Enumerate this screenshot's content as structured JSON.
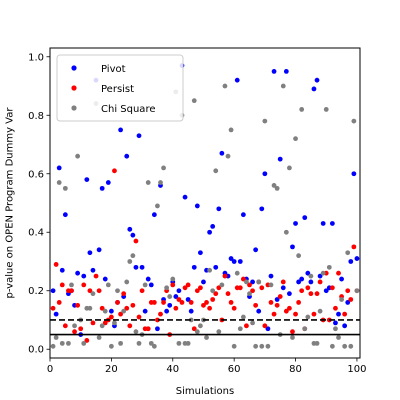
{
  "chart_data": {
    "type": "scatter",
    "xlabel": "Simulations",
    "ylabel": "p-value on OPEN Program Dummy Var",
    "xlim": [
      0,
      101
    ],
    "ylim": [
      -0.03,
      1.03
    ],
    "xticks": [
      0,
      20,
      40,
      60,
      80,
      100
    ],
    "yticks": [
      0.0,
      0.2,
      0.4,
      0.6,
      0.8,
      1.0
    ],
    "xtick_labels": [
      "0",
      "20",
      "40",
      "60",
      "80",
      "100"
    ],
    "ytick_labels": [
      "0.0",
      "0.2",
      "0.4",
      "0.6",
      "0.8",
      "1.0"
    ],
    "grid": false,
    "legend_position": "upper-left",
    "hlines": [
      {
        "y": 0.1,
        "style": "dashed",
        "color": "#000000"
      },
      {
        "y": 0.05,
        "style": "solid",
        "color": "#000000"
      }
    ],
    "series": [
      {
        "name": "Pivot",
        "color": "#0000ff",
        "x": [
          1,
          2,
          3,
          4,
          5,
          6,
          7,
          8,
          9,
          10,
          11,
          12,
          13,
          14,
          15,
          16,
          17,
          18,
          19,
          20,
          21,
          22,
          23,
          24,
          25,
          26,
          27,
          28,
          29,
          30,
          31,
          32,
          33,
          34,
          35,
          36,
          37,
          38,
          39,
          40,
          41,
          42,
          43,
          44,
          45,
          46,
          47,
          48,
          49,
          50,
          51,
          52,
          53,
          54,
          55,
          56,
          57,
          58,
          59,
          60,
          61,
          62,
          63,
          64,
          65,
          66,
          67,
          68,
          69,
          70,
          71,
          72,
          73,
          74,
          75,
          76,
          77,
          78,
          79,
          80,
          81,
          82,
          83,
          84,
          85,
          86,
          87,
          88,
          89,
          90,
          91,
          92,
          93,
          94,
          95,
          96,
          97,
          98,
          99,
          100
        ],
        "y": [
          0.2,
          0.12,
          0.62,
          0.27,
          0.46,
          0.19,
          0.2,
          0.15,
          0.26,
          0.05,
          0.25,
          0.58,
          0.33,
          0.27,
          0.92,
          0.34,
          0.55,
          0.24,
          0.57,
          0.13,
          0.08,
          0.16,
          0.75,
          0.18,
          0.66,
          0.41,
          0.39,
          0.28,
          0.73,
          0.28,
          0.13,
          0.24,
          0.22,
          0.46,
          0.07,
          0.56,
          0.17,
          0.13,
          0.15,
          0.23,
          0.18,
          0.2,
          0.97,
          0.52,
          0.17,
          0.13,
          0.28,
          0.49,
          0.33,
          0.23,
          0.27,
          0.4,
          0.42,
          0.28,
          0.48,
          0.67,
          0.26,
          0.25,
          0.31,
          0.3,
          0.92,
          0.3,
          0.46,
          0.24,
          0.18,
          0.23,
          0.34,
          0.13,
          0.48,
          0.6,
          0.07,
          0.25,
          0.95,
          0.17,
          0.65,
          0.21,
          0.95,
          0.19,
          0.35,
          0.43,
          0.23,
          0.24,
          0.45,
          0.26,
          0.23,
          0.89,
          0.92,
          0.25,
          0.43,
          0.2,
          0.21,
          0.43,
          0.09,
          0.12,
          0.24,
          0.08,
          0.16,
          0.3,
          0.6,
          0.31
        ]
      },
      {
        "name": "Persist",
        "color": "#ff0000",
        "x": [
          1,
          2,
          3,
          4,
          5,
          6,
          7,
          8,
          9,
          10,
          11,
          12,
          13,
          14,
          15,
          16,
          17,
          18,
          19,
          20,
          21,
          22,
          23,
          24,
          25,
          26,
          27,
          28,
          29,
          30,
          31,
          32,
          33,
          34,
          35,
          36,
          37,
          38,
          39,
          40,
          41,
          42,
          43,
          44,
          45,
          46,
          47,
          48,
          49,
          50,
          51,
          52,
          53,
          54,
          55,
          56,
          57,
          58,
          59,
          60,
          61,
          62,
          63,
          64,
          65,
          66,
          67,
          68,
          69,
          70,
          71,
          72,
          73,
          74,
          75,
          76,
          77,
          78,
          79,
          80,
          81,
          82,
          83,
          84,
          85,
          86,
          87,
          88,
          89,
          90,
          91,
          92,
          93,
          94,
          95,
          96,
          97,
          98,
          99,
          100
        ],
        "y": [
          0.14,
          0.29,
          0.16,
          0.22,
          0.08,
          0.2,
          0.2,
          0.06,
          0.15,
          0.07,
          0.22,
          0.03,
          0.2,
          0.09,
          0.25,
          0.2,
          0.14,
          0.09,
          0.1,
          0.11,
          0.61,
          0.16,
          0.12,
          0.19,
          0.14,
          0.08,
          0.15,
          0.37,
          0.11,
          0.2,
          0.07,
          0.07,
          0.16,
          0.16,
          0.1,
          0.12,
          0.16,
          0.2,
          0.05,
          0.22,
          0.14,
          0.17,
          0.16,
          0.21,
          0.22,
          0.16,
          0.07,
          0.2,
          0.21,
          0.15,
          0.16,
          0.14,
          0.17,
          0.19,
          0.21,
          0.1,
          0.25,
          0.19,
          0.16,
          0.14,
          0.21,
          0.21,
          0.24,
          0.08,
          0.22,
          0.2,
          0.15,
          0.23,
          0.21,
          0.08,
          0.22,
          0.16,
          0.12,
          0.15,
          0.18,
          0.23,
          0.13,
          0.14,
          0.06,
          0.12,
          0.16,
          0.2,
          0.07,
          0.21,
          0.19,
          0.12,
          0.19,
          0.23,
          0.1,
          0.26,
          0.1,
          0.21,
          0.14,
          0.26,
          0.18,
          0.12,
          0.2,
          0.17,
          0.35,
          0.2
        ]
      },
      {
        "name": "Chi Square",
        "color": "#808080",
        "x": [
          1,
          2,
          3,
          4,
          5,
          6,
          7,
          8,
          9,
          10,
          11,
          12,
          13,
          14,
          15,
          16,
          17,
          18,
          19,
          20,
          21,
          22,
          23,
          24,
          25,
          26,
          27,
          28,
          29,
          30,
          31,
          32,
          33,
          34,
          35,
          36,
          37,
          38,
          39,
          40,
          41,
          42,
          43,
          44,
          45,
          46,
          47,
          48,
          49,
          50,
          51,
          52,
          53,
          54,
          55,
          56,
          57,
          58,
          59,
          60,
          61,
          62,
          63,
          64,
          65,
          66,
          67,
          68,
          69,
          70,
          71,
          72,
          73,
          74,
          75,
          76,
          77,
          78,
          79,
          80,
          81,
          82,
          83,
          84,
          85,
          86,
          87,
          88,
          89,
          90,
          91,
          92,
          93,
          94,
          95,
          96,
          97,
          98,
          99,
          100
        ],
        "y": [
          0.01,
          0.04,
          0.57,
          0.02,
          0.55,
          0.02,
          0.22,
          0.08,
          0.66,
          0.1,
          0.02,
          0.14,
          0.14,
          0.19,
          0.84,
          0.04,
          0.08,
          0.13,
          0.22,
          0.01,
          0.09,
          0.2,
          0.02,
          0.13,
          0.23,
          0.3,
          0.32,
          0.06,
          0.02,
          0.05,
          0.22,
          0.57,
          0.02,
          0.01,
          0.49,
          0.57,
          0.62,
          0.21,
          0.18,
          0.24,
          0.88,
          0.02,
          0.8,
          0.02,
          0.02,
          0.1,
          0.85,
          0.06,
          0.08,
          0.1,
          0.04,
          0.27,
          0.2,
          0.61,
          0.06,
          0.22,
          0.9,
          0.66,
          0.75,
          0.01,
          0.26,
          0.07,
          0.11,
          0.23,
          0.19,
          0.09,
          0.01,
          0.23,
          0.01,
          0.78,
          0.01,
          0.22,
          0.56,
          0.55,
          0.05,
          0.9,
          0.4,
          0.62,
          0.04,
          0.72,
          0.32,
          0.82,
          0.07,
          0.11,
          0.25,
          0.02,
          0.02,
          0.13,
          0.26,
          0.82,
          0.28,
          0.01,
          0.07,
          0.04,
          0.17,
          0.01,
          0.33,
          0.01,
          0.78,
          0.2
        ]
      }
    ]
  }
}
